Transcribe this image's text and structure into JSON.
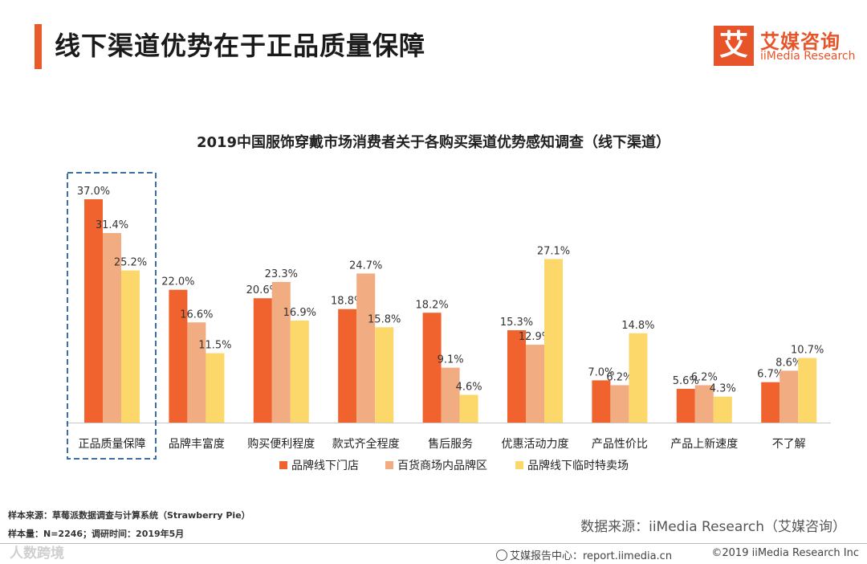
{
  "page_title": "线下渠道优势在于正品质量保障",
  "logo": {
    "mark": "艾",
    "name_cn": "艾媒咨询",
    "name_en": "iiMedia Research"
  },
  "chart_data": {
    "type": "bar",
    "title": "2019中国服饰穿戴市场消费者关于各购买渠道优势感知调查（线下渠道）",
    "categories": [
      "正品质量保障",
      "品牌丰富度",
      "购买便利程度",
      "款式齐全程度",
      "售后服务",
      "优惠活动力度",
      "产品性价比",
      "产品上新速度",
      "不了解"
    ],
    "series": [
      {
        "name": "品牌线下门店",
        "color": "#f0632f",
        "values": [
          37.0,
          22.0,
          20.6,
          18.8,
          18.2,
          15.3,
          7.0,
          5.6,
          6.7
        ],
        "labels": [
          "37.0%",
          "22.0%",
          "20.6%",
          "18.8%",
          "18.2%",
          "15.3%",
          "7.0%",
          "5.6%",
          "6.7%"
        ]
      },
      {
        "name": "百货商场内品牌区",
        "color": "#f2ac82",
        "values": [
          31.4,
          16.6,
          23.3,
          24.7,
          9.1,
          12.9,
          6.2,
          6.2,
          8.6
        ],
        "labels": [
          "31.4%",
          "16.6%",
          "23.3%",
          "24.7%",
          "9.1%",
          "12.9%",
          "6.2%",
          "6.2%",
          "8.6%"
        ]
      },
      {
        "name": "品牌线下临时特卖场",
        "color": "#fcd86a",
        "values": [
          25.2,
          11.5,
          16.9,
          15.8,
          4.6,
          27.1,
          14.8,
          4.3,
          10.7
        ],
        "labels": [
          "25.2%",
          "11.5%",
          "16.9%",
          "15.8%",
          "4.6%",
          "27.1%",
          "14.8%",
          "4.3%",
          "10.7%"
        ]
      }
    ],
    "ylim": [
      0,
      40
    ],
    "grid": false,
    "legend": "bottom",
    "highlight_category": "正品质量保障",
    "highlight_color": "#3a6ea5"
  },
  "footer": {
    "sample_source": "样本来源：草莓派数据调查与计算系统（Strawberry  Pie）",
    "sample_size": "样本量：N=2246；调研时间：2019年5月",
    "data_source": "数据来源：iiMedia Research（艾媒咨询）",
    "report_center": "艾媒报告中心：report.iimedia.cn",
    "copyright": "©2019  iiMedia Research Inc",
    "watermark": "人数跨境"
  }
}
